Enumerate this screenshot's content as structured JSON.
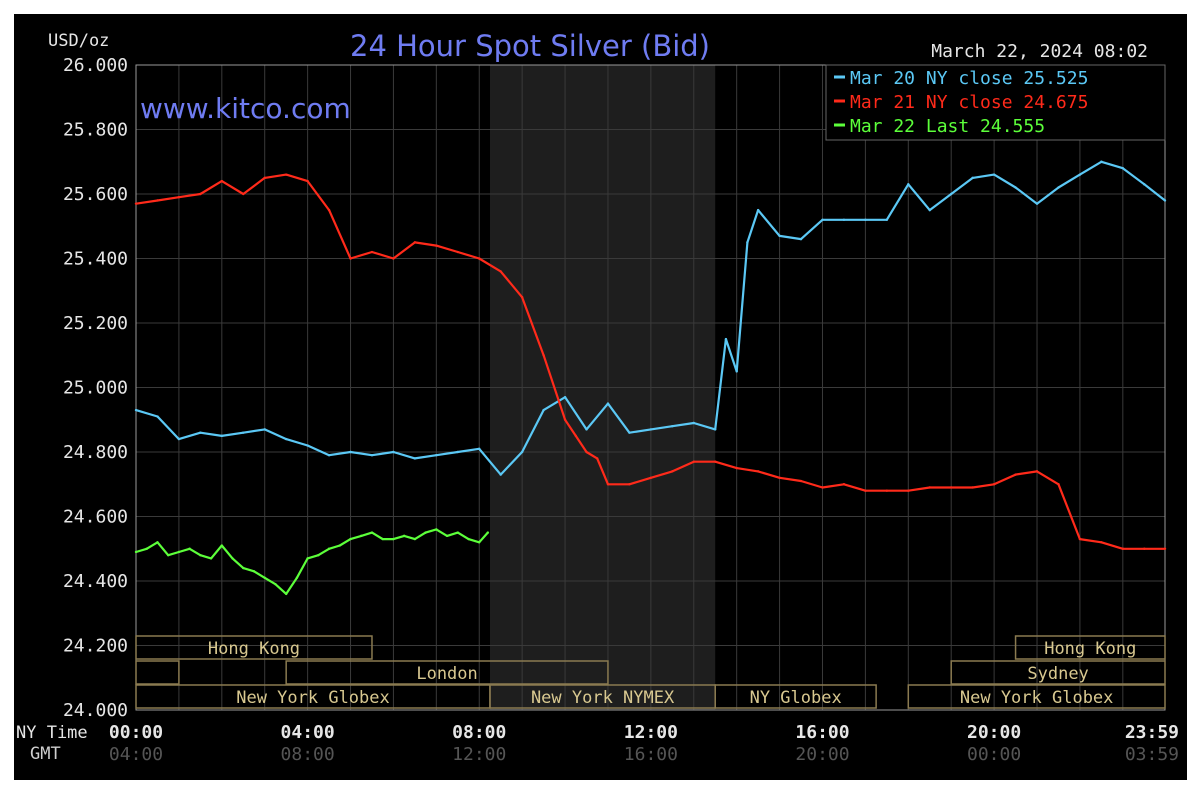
{
  "chart_data": {
    "type": "line",
    "title": "24 Hour Spot Silver (Bid)",
    "unit_label": "USD/oz",
    "timestamp": "March 22, 2024 08:02",
    "watermark": "www.kitco.com",
    "ylim": [
      24.0,
      26.0
    ],
    "y_ticks": [
      "26.000",
      "25.800",
      "25.600",
      "25.400",
      "25.200",
      "25.000",
      "24.800",
      "24.600",
      "24.400",
      "24.200",
      "24.000"
    ],
    "x_row_labels": [
      "NY Time",
      "GMT"
    ],
    "x_ticks_ny": [
      "00:00",
      "04:00",
      "08:00",
      "12:00",
      "16:00",
      "20:00",
      "23:59"
    ],
    "x_ticks_gmt": [
      "04:00",
      "08:00",
      "12:00",
      "16:00",
      "20:00",
      "00:00",
      "03:59"
    ],
    "grid": true,
    "legend_position": "top-right",
    "legend": [
      {
        "label": "Mar 20 NY close 25.525",
        "color": "#5bc8f5"
      },
      {
        "label": "Mar 21 NY close 24.675",
        "color": "#ff2a1a"
      },
      {
        "label": "Mar 22 Last 24.555",
        "color": "#5cff3a"
      }
    ],
    "market_sessions": [
      {
        "label": "Hong Kong",
        "start": 0.0,
        "end": 5.5
      },
      {
        "label": "",
        "start": 0.0,
        "end": 1.0
      },
      {
        "label": "London",
        "start": 3.5,
        "end": 11.0
      },
      {
        "label": "New York Globex",
        "start": 0.0,
        "end": 8.25
      },
      {
        "label": "New York NYMEX",
        "start": 8.25,
        "end": 13.5
      },
      {
        "label": "NY Globex",
        "start": 13.5,
        "end": 17.25
      },
      {
        "label": "Hong Kong",
        "start": 20.5,
        "end": 23.983
      },
      {
        "label": "Sydney",
        "start": 19.0,
        "end": 23.983
      },
      {
        "label": "New York Globex",
        "start": 18.0,
        "end": 23.983
      }
    ],
    "shaded_period": {
      "start": 8.25,
      "end": 13.5
    },
    "series": [
      {
        "name": "Mar 20 NY close 25.525",
        "color": "#5bc8f5",
        "x": [
          0,
          0.5,
          1,
          1.5,
          2,
          2.5,
          3,
          3.5,
          4,
          4.5,
          5,
          5.5,
          6,
          6.5,
          7,
          7.5,
          8,
          8.5,
          9,
          9.5,
          10,
          10.5,
          11,
          11.5,
          12,
          12.5,
          13,
          13.5,
          13.75,
          14,
          14.25,
          14.5,
          15,
          15.5,
          16,
          16.5,
          17,
          17.5,
          18,
          18.5,
          19,
          19.5,
          20,
          20.5,
          21,
          21.5,
          22,
          22.5,
          23,
          23.5,
          23.983
        ],
        "values": [
          24.93,
          24.91,
          24.84,
          24.86,
          24.85,
          24.86,
          24.87,
          24.84,
          24.82,
          24.79,
          24.8,
          24.79,
          24.8,
          24.78,
          24.79,
          24.8,
          24.81,
          24.73,
          24.8,
          24.93,
          24.97,
          24.87,
          24.95,
          24.86,
          24.87,
          24.88,
          24.89,
          24.87,
          25.15,
          25.05,
          25.45,
          25.55,
          25.47,
          25.46,
          25.52,
          25.52,
          25.52,
          25.52,
          25.63,
          25.55,
          25.6,
          25.65,
          25.66,
          25.62,
          25.57,
          25.62,
          25.66,
          25.7,
          25.68,
          25.63,
          25.58
        ]
      },
      {
        "name": "Mar 21 NY close 24.675",
        "color": "#ff2a1a",
        "x": [
          0,
          0.5,
          1,
          1.5,
          2,
          2.5,
          3,
          3.5,
          4,
          4.5,
          5,
          5.5,
          6,
          6.5,
          7,
          7.5,
          8,
          8.5,
          9,
          9.5,
          10,
          10.25,
          10.5,
          10.75,
          11,
          11.5,
          12,
          12.5,
          13,
          13.5,
          14,
          14.5,
          15,
          15.5,
          16,
          16.5,
          17,
          17.5,
          18,
          18.5,
          19,
          19.5,
          20,
          20.5,
          21,
          21.5,
          22,
          22.5,
          23,
          23.5,
          23.983
        ],
        "values": [
          25.57,
          25.58,
          25.59,
          25.6,
          25.64,
          25.6,
          25.65,
          25.66,
          25.64,
          25.55,
          25.4,
          25.42,
          25.4,
          25.45,
          25.44,
          25.42,
          25.4,
          25.36,
          25.28,
          25.1,
          24.9,
          24.85,
          24.8,
          24.78,
          24.7,
          24.7,
          24.72,
          24.74,
          24.77,
          24.77,
          24.75,
          24.74,
          24.72,
          24.71,
          24.69,
          24.7,
          24.68,
          24.68,
          24.68,
          24.69,
          24.69,
          24.69,
          24.7,
          24.73,
          24.74,
          24.7,
          24.53,
          24.52,
          24.5,
          24.5,
          24.5
        ]
      },
      {
        "name": "Mar 22 Last 24.555",
        "color": "#5cff3a",
        "x": [
          0,
          0.25,
          0.5,
          0.75,
          1,
          1.25,
          1.5,
          1.75,
          2,
          2.25,
          2.5,
          2.75,
          3,
          3.25,
          3.5,
          3.75,
          4,
          4.25,
          4.5,
          4.75,
          5,
          5.25,
          5.5,
          5.75,
          6,
          6.25,
          6.5,
          6.75,
          7,
          7.25,
          7.5,
          7.75,
          8,
          8.2
        ],
        "values": [
          24.49,
          24.5,
          24.52,
          24.48,
          24.49,
          24.5,
          24.48,
          24.47,
          24.51,
          24.47,
          24.44,
          24.43,
          24.41,
          24.39,
          24.36,
          24.41,
          24.47,
          24.48,
          24.5,
          24.51,
          24.53,
          24.54,
          24.55,
          24.53,
          24.53,
          24.54,
          24.53,
          24.55,
          24.56,
          24.54,
          24.55,
          24.53,
          24.52,
          24.55
        ]
      }
    ]
  }
}
